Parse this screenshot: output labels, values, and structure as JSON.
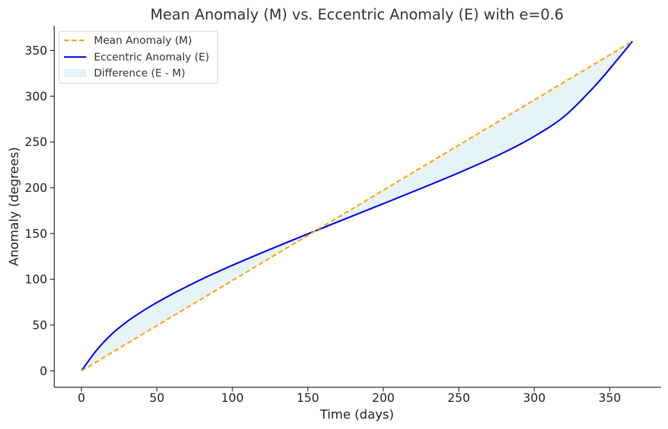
{
  "chart_data": {
    "type": "line",
    "title": "Mean Anomaly (M) vs. Eccentric Anomaly (E) with e=0.6",
    "xlabel": "Time (days)",
    "ylabel": "Anomaly (degrees)",
    "xlim": [
      -18,
      384
    ],
    "ylim": [
      -18,
      377
    ],
    "xticks": [
      0,
      50,
      100,
      150,
      200,
      250,
      300,
      350
    ],
    "yticks": [
      0,
      50,
      100,
      150,
      200,
      250,
      300,
      350
    ],
    "eccentricity": 0.6,
    "period_days": 365,
    "grid": false,
    "legend_position": "top-left",
    "series": [
      {
        "name": "Mean Anomaly (M)",
        "style": "dashed",
        "color": "#FFA500",
        "x": [
          0,
          365
        ],
        "y": [
          0,
          360
        ]
      },
      {
        "name": "Eccentric Anomaly (E)",
        "style": "solid",
        "color": "#0000EE",
        "x": [
          0,
          10,
          20,
          30,
          40,
          50,
          60,
          70,
          80,
          90,
          100,
          120,
          140,
          160,
          180,
          200,
          220,
          240,
          260,
          280,
          300,
          320,
          340,
          355,
          365
        ],
        "y": [
          0,
          22.4,
          40.0,
          53.5,
          64.7,
          74.6,
          83.7,
          92.2,
          100.3,
          107.9,
          115.3,
          129.3,
          142.9,
          156.2,
          169.4,
          182.6,
          195.9,
          209.4,
          223.5,
          238.6,
          256.1,
          278.1,
          310.9,
          339.8,
          360
        ]
      }
    ],
    "fill": {
      "name": "Difference (E - M)",
      "color": "#ADD8E6",
      "opacity": 0.3
    }
  }
}
